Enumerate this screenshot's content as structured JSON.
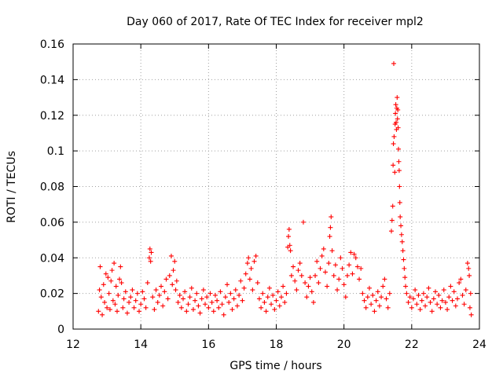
{
  "chart_data": {
    "type": "scatter",
    "title": "Day 060 of 2017, Rate Of TEC Index for receiver mpl2",
    "xlabel": "GPS time / hours",
    "ylabel": "ROTI / TECUs",
    "xlim": [
      12,
      24
    ],
    "ylim": [
      0,
      0.16
    ],
    "grid": true,
    "marker": "plus",
    "x_ticks": [
      12,
      14,
      16,
      18,
      20,
      22,
      24
    ],
    "x_tick_labels": [
      "12",
      "14",
      "16",
      "18",
      "20",
      "22",
      "24"
    ],
    "y_ticks": [
      0,
      0.02,
      0.04,
      0.06,
      0.08,
      0.1,
      0.12,
      0.14,
      0.16
    ],
    "y_tick_labels": [
      "0",
      "0.02",
      "0.04",
      "0.06",
      "0.08",
      "0.1",
      "0.12",
      "0.14",
      "0.16"
    ],
    "colors": {
      "series": "#ff0000",
      "axis": "#000000",
      "grid": "#a0a0a0",
      "background": "#ffffff"
    },
    "series": [
      {
        "name": "ROTI",
        "points": [
          [
            12.75,
            0.01
          ],
          [
            12.78,
            0.022
          ],
          [
            12.8,
            0.035
          ],
          [
            12.83,
            0.018
          ],
          [
            12.86,
            0.008
          ],
          [
            12.9,
            0.025
          ],
          [
            12.93,
            0.015
          ],
          [
            12.97,
            0.031
          ],
          [
            13.0,
            0.012
          ],
          [
            13.03,
            0.029
          ],
          [
            13.06,
            0.02
          ],
          [
            13.09,
            0.011
          ],
          [
            13.12,
            0.027
          ],
          [
            13.15,
            0.033
          ],
          [
            13.18,
            0.016
          ],
          [
            13.21,
            0.037
          ],
          [
            13.24,
            0.014
          ],
          [
            13.27,
            0.024
          ],
          [
            13.3,
            0.01
          ],
          [
            13.33,
            0.019
          ],
          [
            13.37,
            0.028
          ],
          [
            13.4,
            0.035
          ],
          [
            13.43,
            0.026
          ],
          [
            13.47,
            0.012
          ],
          [
            13.5,
            0.017
          ],
          [
            13.55,
            0.021
          ],
          [
            13.6,
            0.009
          ],
          [
            13.65,
            0.015
          ],
          [
            13.7,
            0.018
          ],
          [
            13.75,
            0.022
          ],
          [
            13.8,
            0.012
          ],
          [
            13.85,
            0.016
          ],
          [
            13.9,
            0.02
          ],
          [
            13.95,
            0.01
          ],
          [
            14.0,
            0.014
          ],
          [
            14.05,
            0.021
          ],
          [
            14.1,
            0.017
          ],
          [
            14.15,
            0.012
          ],
          [
            14.2,
            0.026
          ],
          [
            14.25,
            0.04
          ],
          [
            14.27,
            0.045
          ],
          [
            14.29,
            0.038
          ],
          [
            14.31,
            0.043
          ],
          [
            14.35,
            0.018
          ],
          [
            14.4,
            0.011
          ],
          [
            14.45,
            0.022
          ],
          [
            14.5,
            0.015
          ],
          [
            14.55,
            0.019
          ],
          [
            14.6,
            0.024
          ],
          [
            14.65,
            0.013
          ],
          [
            14.7,
            0.021
          ],
          [
            14.75,
            0.028
          ],
          [
            14.8,
            0.017
          ],
          [
            14.85,
            0.03
          ],
          [
            14.9,
            0.041
          ],
          [
            14.93,
            0.025
          ],
          [
            14.96,
            0.033
          ],
          [
            15.0,
            0.038
          ],
          [
            15.03,
            0.022
          ],
          [
            15.06,
            0.027
          ],
          [
            15.1,
            0.015
          ],
          [
            15.15,
            0.019
          ],
          [
            15.2,
            0.012
          ],
          [
            15.25,
            0.017
          ],
          [
            15.3,
            0.021
          ],
          [
            15.35,
            0.01
          ],
          [
            15.4,
            0.014
          ],
          [
            15.45,
            0.018
          ],
          [
            15.5,
            0.023
          ],
          [
            15.55,
            0.011
          ],
          [
            15.6,
            0.016
          ],
          [
            15.65,
            0.02
          ],
          [
            15.7,
            0.013
          ],
          [
            15.75,
            0.009
          ],
          [
            15.8,
            0.017
          ],
          [
            15.85,
            0.022
          ],
          [
            15.9,
            0.014
          ],
          [
            15.95,
            0.018
          ],
          [
            16.0,
            0.012
          ],
          [
            16.05,
            0.02
          ],
          [
            16.1,
            0.015
          ],
          [
            16.15,
            0.01
          ],
          [
            16.2,
            0.019
          ],
          [
            16.25,
            0.016
          ],
          [
            16.3,
            0.012
          ],
          [
            16.35,
            0.021
          ],
          [
            16.4,
            0.014
          ],
          [
            16.45,
            0.008
          ],
          [
            16.5,
            0.018
          ],
          [
            16.55,
            0.025
          ],
          [
            16.6,
            0.015
          ],
          [
            16.65,
            0.02
          ],
          [
            16.7,
            0.011
          ],
          [
            16.75,
            0.017
          ],
          [
            16.8,
            0.022
          ],
          [
            16.85,
            0.013
          ],
          [
            16.9,
            0.019
          ],
          [
            16.95,
            0.027
          ],
          [
            17.0,
            0.016
          ],
          [
            17.05,
            0.023
          ],
          [
            17.1,
            0.031
          ],
          [
            17.15,
            0.037
          ],
          [
            17.18,
            0.04
          ],
          [
            17.22,
            0.028
          ],
          [
            17.26,
            0.034
          ],
          [
            17.3,
            0.022
          ],
          [
            17.35,
            0.038
          ],
          [
            17.4,
            0.041
          ],
          [
            17.45,
            0.026
          ],
          [
            17.5,
            0.017
          ],
          [
            17.55,
            0.012
          ],
          [
            17.6,
            0.02
          ],
          [
            17.65,
            0.015
          ],
          [
            17.7,
            0.01
          ],
          [
            17.75,
            0.018
          ],
          [
            17.8,
            0.023
          ],
          [
            17.85,
            0.014
          ],
          [
            17.9,
            0.019
          ],
          [
            17.95,
            0.011
          ],
          [
            18.0,
            0.016
          ],
          [
            18.05,
            0.021
          ],
          [
            18.1,
            0.013
          ],
          [
            18.15,
            0.018
          ],
          [
            18.2,
            0.024
          ],
          [
            18.25,
            0.015
          ],
          [
            18.3,
            0.02
          ],
          [
            18.34,
            0.046
          ],
          [
            18.36,
            0.052
          ],
          [
            18.38,
            0.056
          ],
          [
            18.4,
            0.047
          ],
          [
            18.42,
            0.044
          ],
          [
            18.45,
            0.03
          ],
          [
            18.5,
            0.035
          ],
          [
            18.55,
            0.027
          ],
          [
            18.6,
            0.022
          ],
          [
            18.65,
            0.033
          ],
          [
            18.7,
            0.037
          ],
          [
            18.75,
            0.03
          ],
          [
            18.8,
            0.06
          ],
          [
            18.85,
            0.026
          ],
          [
            18.9,
            0.018
          ],
          [
            18.95,
            0.024
          ],
          [
            19.0,
            0.029
          ],
          [
            19.05,
            0.021
          ],
          [
            19.1,
            0.015
          ],
          [
            19.15,
            0.03
          ],
          [
            19.2,
            0.038
          ],
          [
            19.25,
            0.026
          ],
          [
            19.3,
            0.034
          ],
          [
            19.35,
            0.041
          ],
          [
            19.4,
            0.045
          ],
          [
            19.45,
            0.032
          ],
          [
            19.5,
            0.024
          ],
          [
            19.55,
            0.037
          ],
          [
            19.58,
            0.052
          ],
          [
            19.6,
            0.057
          ],
          [
            19.62,
            0.063
          ],
          [
            19.65,
            0.044
          ],
          [
            19.7,
            0.03
          ],
          [
            19.75,
            0.036
          ],
          [
            19.8,
            0.022
          ],
          [
            19.85,
            0.028
          ],
          [
            19.9,
            0.04
          ],
          [
            19.95,
            0.034
          ],
          [
            20.0,
            0.025
          ],
          [
            20.05,
            0.018
          ],
          [
            20.1,
            0.03
          ],
          [
            20.15,
            0.036
          ],
          [
            20.2,
            0.043
          ],
          [
            20.25,
            0.031
          ],
          [
            20.3,
            0.042
          ],
          [
            20.35,
            0.04
          ],
          [
            20.4,
            0.035
          ],
          [
            20.45,
            0.028
          ],
          [
            20.5,
            0.034
          ],
          [
            20.55,
            0.02
          ],
          [
            20.6,
            0.016
          ],
          [
            20.65,
            0.012
          ],
          [
            20.7,
            0.018
          ],
          [
            20.75,
            0.023
          ],
          [
            20.8,
            0.014
          ],
          [
            20.85,
            0.019
          ],
          [
            20.9,
            0.01
          ],
          [
            20.95,
            0.016
          ],
          [
            21.0,
            0.021
          ],
          [
            21.05,
            0.013
          ],
          [
            21.1,
            0.018
          ],
          [
            21.15,
            0.024
          ],
          [
            21.2,
            0.028
          ],
          [
            21.25,
            0.017
          ],
          [
            21.3,
            0.012
          ],
          [
            21.35,
            0.02
          ],
          [
            21.4,
            0.055
          ],
          [
            21.42,
            0.061
          ],
          [
            21.44,
            0.069
          ],
          [
            21.45,
            0.092
          ],
          [
            21.46,
            0.104
          ],
          [
            21.47,
            0.149
          ],
          [
            21.48,
            0.108
          ],
          [
            21.5,
            0.088
          ],
          [
            21.51,
            0.115
          ],
          [
            21.52,
            0.121
          ],
          [
            21.53,
            0.126
          ],
          [
            21.54,
            0.116
          ],
          [
            21.55,
            0.112
          ],
          [
            21.56,
            0.124
          ],
          [
            21.57,
            0.13
          ],
          [
            21.58,
            0.118
          ],
          [
            21.59,
            0.123
          ],
          [
            21.6,
            0.113
          ],
          [
            21.61,
            0.101
          ],
          [
            21.62,
            0.094
          ],
          [
            21.63,
            0.089
          ],
          [
            21.64,
            0.08
          ],
          [
            21.65,
            0.071
          ],
          [
            21.66,
            0.063
          ],
          [
            21.68,
            0.058
          ],
          [
            21.7,
            0.053
          ],
          [
            21.72,
            0.049
          ],
          [
            21.74,
            0.044
          ],
          [
            21.76,
            0.039
          ],
          [
            21.78,
            0.034
          ],
          [
            21.8,
            0.029
          ],
          [
            21.82,
            0.024
          ],
          [
            21.85,
            0.02
          ],
          [
            21.9,
            0.015
          ],
          [
            21.95,
            0.018
          ],
          [
            22.0,
            0.012
          ],
          [
            22.05,
            0.017
          ],
          [
            22.1,
            0.022
          ],
          [
            22.15,
            0.014
          ],
          [
            22.2,
            0.019
          ],
          [
            22.25,
            0.011
          ],
          [
            22.3,
            0.016
          ],
          [
            22.35,
            0.02
          ],
          [
            22.4,
            0.013
          ],
          [
            22.45,
            0.018
          ],
          [
            22.5,
            0.023
          ],
          [
            22.55,
            0.015
          ],
          [
            22.6,
            0.01
          ],
          [
            22.65,
            0.017
          ],
          [
            22.7,
            0.021
          ],
          [
            22.75,
            0.014
          ],
          [
            22.8,
            0.019
          ],
          [
            22.85,
            0.012
          ],
          [
            22.9,
            0.016
          ],
          [
            22.95,
            0.022
          ],
          [
            23.0,
            0.015
          ],
          [
            23.05,
            0.011
          ],
          [
            23.1,
            0.018
          ],
          [
            23.15,
            0.024
          ],
          [
            23.2,
            0.016
          ],
          [
            23.25,
            0.021
          ],
          [
            23.3,
            0.013
          ],
          [
            23.35,
            0.017
          ],
          [
            23.4,
            0.026
          ],
          [
            23.45,
            0.028
          ],
          [
            23.5,
            0.019
          ],
          [
            23.55,
            0.014
          ],
          [
            23.6,
            0.022
          ],
          [
            23.65,
            0.037
          ],
          [
            23.68,
            0.034
          ],
          [
            23.7,
            0.03
          ],
          [
            23.72,
            0.012
          ],
          [
            23.74,
            0.02
          ],
          [
            23.76,
            0.008
          ]
        ]
      }
    ]
  }
}
